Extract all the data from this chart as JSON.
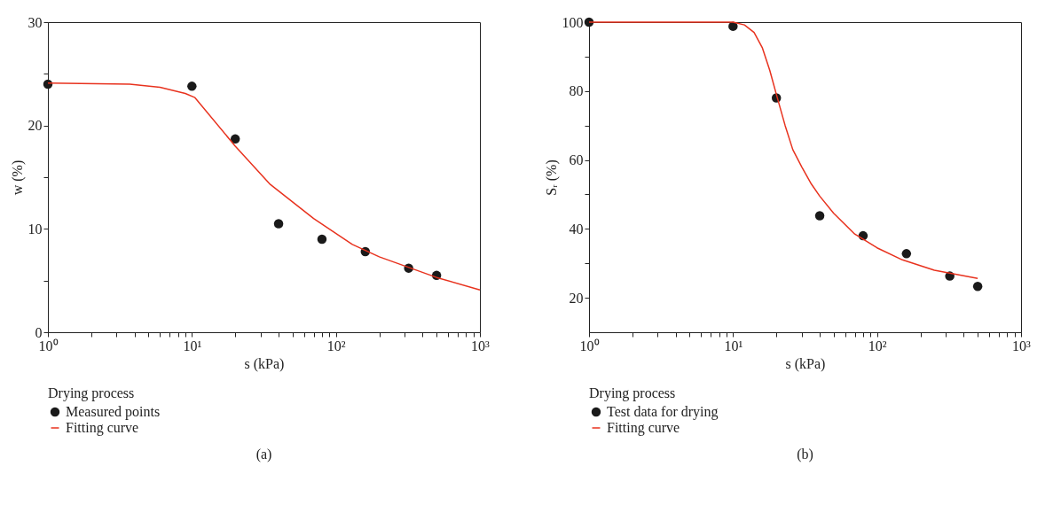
{
  "chart_data": [
    {
      "type": "scatter",
      "xlabel": "s (kPa)",
      "ylabel": "w (%)",
      "legend_title": "Drying process",
      "legend": "bottom left",
      "log": "x",
      "grid": false,
      "annotations": [
        "(a)"
      ],
      "xlim": [
        1,
        1000
      ],
      "xticks": [
        {
          "value": 1,
          "label": "10⁰"
        },
        {
          "value": 2,
          "label": null
        },
        {
          "value": 3,
          "label": null
        },
        {
          "value": 4,
          "label": null
        },
        {
          "value": 5,
          "label": null
        },
        {
          "value": 6,
          "label": null
        },
        {
          "value": 7,
          "label": null
        },
        {
          "value": 8,
          "label": null
        },
        {
          "value": 9,
          "label": null
        },
        {
          "value": 10,
          "label": "10¹"
        },
        {
          "value": 20,
          "label": null
        },
        {
          "value": 30,
          "label": null
        },
        {
          "value": 40,
          "label": null
        },
        {
          "value": 50,
          "label": null
        },
        {
          "value": 60,
          "label": null
        },
        {
          "value": 70,
          "label": null
        },
        {
          "value": 80,
          "label": null
        },
        {
          "value": 90,
          "label": null
        },
        {
          "value": 100,
          "label": "10²"
        },
        {
          "value": 200,
          "label": null
        },
        {
          "value": 300,
          "label": null
        },
        {
          "value": 400,
          "label": null
        },
        {
          "value": 500,
          "label": null
        },
        {
          "value": 600,
          "label": null
        },
        {
          "value": 700,
          "label": null
        },
        {
          "value": 800,
          "label": null
        },
        {
          "value": 900,
          "label": null
        },
        {
          "value": 1000,
          "label": "10³"
        }
      ],
      "ylim": [
        0,
        30
      ],
      "yticks": [
        0,
        {
          "value": 5,
          "label": null
        },
        10,
        {
          "value": 15,
          "label": null
        },
        20,
        {
          "value": 25,
          "label": null
        },
        30
      ],
      "series": [
        {
          "name": "Measured points",
          "marker": "circle",
          "color": "#1a1a1a",
          "x": [
            1,
            10,
            20,
            40,
            80,
            160,
            320,
            500
          ],
          "values": [
            24.0,
            23.8,
            18.7,
            10.5,
            9.0,
            7.8,
            6.2,
            5.5
          ]
        },
        {
          "name": "Fitting curve",
          "type": "line",
          "marker": "none",
          "color": "#e8321e",
          "x": [
            1,
            3.7,
            6,
            9,
            10.5,
            20,
            35,
            70,
            130,
            200,
            500,
            1000
          ],
          "values": [
            24.1,
            24.0,
            23.7,
            23.1,
            22.7,
            18.0,
            14.3,
            11.0,
            8.5,
            7.3,
            5.3,
            4.1
          ]
        }
      ]
    },
    {
      "type": "scatter",
      "xlabel": "s (kPa)",
      "ylabel": "Sᵣ (%)",
      "legend_title": "Drying process",
      "legend": "bottom left",
      "log": "x",
      "grid": false,
      "annotations": [
        "(b)"
      ],
      "xlim": [
        1,
        1000
      ],
      "xticks": [
        {
          "value": 1,
          "label": "10⁰"
        },
        {
          "value": 2,
          "label": null
        },
        {
          "value": 3,
          "label": null
        },
        {
          "value": 4,
          "label": null
        },
        {
          "value": 5,
          "label": null
        },
        {
          "value": 6,
          "label": null
        },
        {
          "value": 7,
          "label": null
        },
        {
          "value": 8,
          "label": null
        },
        {
          "value": 9,
          "label": null
        },
        {
          "value": 10,
          "label": "10¹"
        },
        {
          "value": 20,
          "label": null
        },
        {
          "value": 30,
          "label": null
        },
        {
          "value": 40,
          "label": null
        },
        {
          "value": 50,
          "label": null
        },
        {
          "value": 60,
          "label": null
        },
        {
          "value": 70,
          "label": null
        },
        {
          "value": 80,
          "label": null
        },
        {
          "value": 90,
          "label": null
        },
        {
          "value": 100,
          "label": "10²"
        },
        {
          "value": 200,
          "label": null
        },
        {
          "value": 300,
          "label": null
        },
        {
          "value": 400,
          "label": null
        },
        {
          "value": 500,
          "label": null
        },
        {
          "value": 600,
          "label": null
        },
        {
          "value": 700,
          "label": null
        },
        {
          "value": 800,
          "label": null
        },
        {
          "value": 900,
          "label": null
        },
        {
          "value": 1000,
          "label": "10³"
        }
      ],
      "ylim": [
        10,
        100
      ],
      "yticks": [
        20,
        {
          "value": 30,
          "label": null
        },
        40,
        {
          "value": 50,
          "label": null
        },
        60,
        {
          "value": 70,
          "label": null
        },
        80,
        {
          "value": 90,
          "label": null
        },
        100
      ],
      "series": [
        {
          "name": "Test data for drying",
          "marker": "circle",
          "color": "#1a1a1a",
          "x": [
            1,
            10,
            20,
            40,
            80,
            160,
            320,
            500
          ],
          "values": [
            100,
            98.8,
            78,
            43.8,
            38,
            32.8,
            26.3,
            23.3
          ]
        },
        {
          "name": "Fitting curve",
          "type": "line",
          "marker": "none",
          "color": "#e8321e",
          "x": [
            1,
            10,
            12,
            14,
            16,
            18,
            20,
            23,
            26,
            30,
            35,
            40,
            50,
            70,
            100,
            150,
            250,
            500
          ],
          "values": [
            100,
            100,
            99.2,
            97,
            92.5,
            86,
            79,
            70,
            63,
            58,
            53,
            49.5,
            44.5,
            38.5,
            34.5,
            31,
            28,
            25.6
          ]
        }
      ]
    }
  ]
}
